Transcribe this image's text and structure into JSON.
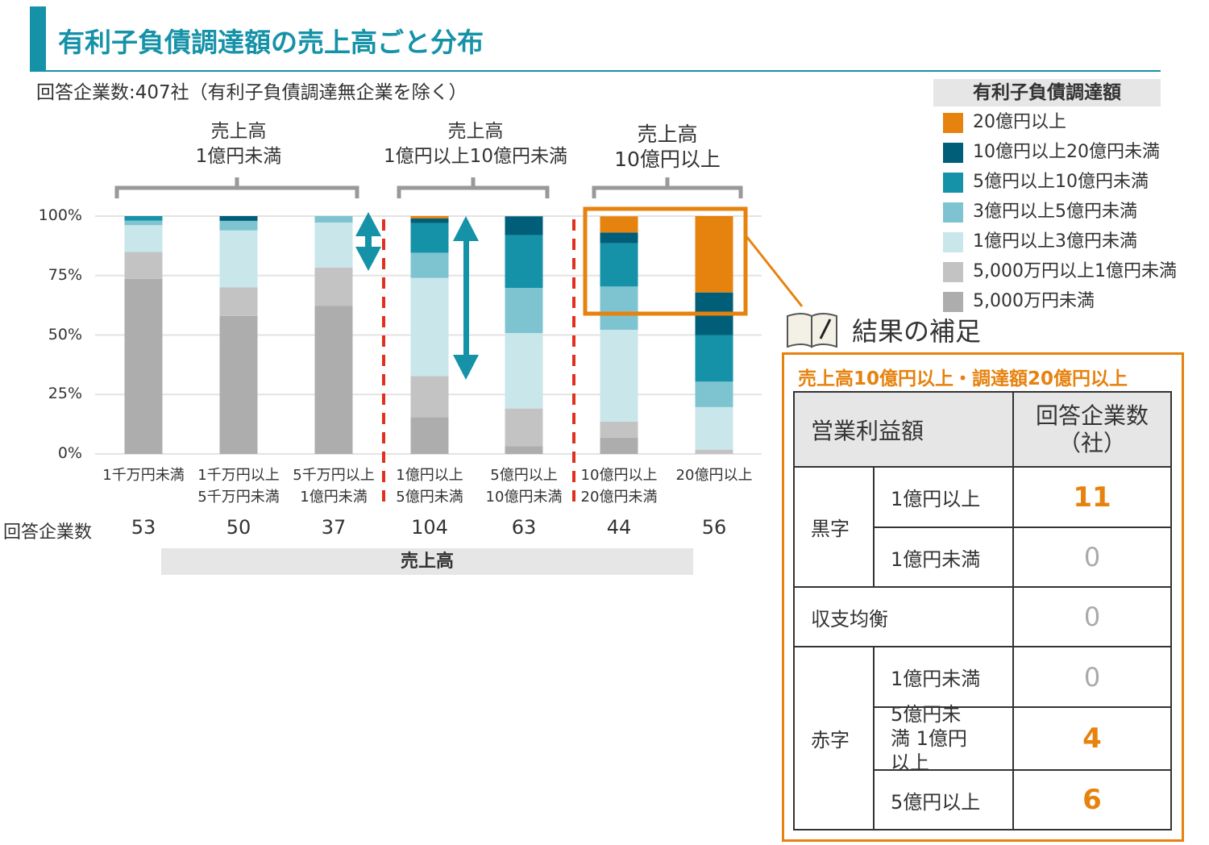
{
  "header": {
    "title": "有利子負債調達額の売上高ごと分布",
    "subtitle": "回答企業数:407社（有利子負債調達無企業を除く）"
  },
  "groups": [
    {
      "line1": "売上高",
      "line2": "1億円未満"
    },
    {
      "line1": "売上高",
      "line2": "1億円以上10億円未満"
    },
    {
      "line1": "売上高",
      "line2": "10億円以上"
    }
  ],
  "chart_data": {
    "type": "bar",
    "stacked": true,
    "percent": true,
    "categories": [
      [
        "1千万円未満",
        ""
      ],
      [
        "1千万円以上",
        "5千万円未満"
      ],
      [
        "5千万円以上",
        "1億円未満"
      ],
      [
        "1億円以上",
        "5億円未満"
      ],
      [
        "5億円以上",
        "10億円未満"
      ],
      [
        "10億円以上",
        "20億円未満"
      ],
      [
        "20億円以上",
        ""
      ]
    ],
    "yticks": [
      "0%",
      "25%",
      "50%",
      "75%",
      "100%"
    ],
    "ylim": [
      0,
      100
    ],
    "grid": true,
    "xlabel": "売上高",
    "count_label": "回答企業数",
    "counts": [
      53,
      50,
      37,
      104,
      63,
      44,
      56
    ],
    "legend_title": "有利子負債調達額",
    "legend_position": "right",
    "series": [
      {
        "name": "5,000万円未満",
        "color": "#ADADAD",
        "values": [
          73.6,
          58.0,
          62.2,
          15.4,
          3.2,
          6.8,
          0
        ]
      },
      {
        "name": "5,000万円以上1億円未満",
        "color": "#C3C3C3",
        "values": [
          11.3,
          12.0,
          16.2,
          17.3,
          15.9,
          6.8,
          1.8
        ]
      },
      {
        "name": "1億円以上3億円未満",
        "color": "#C9E6EA",
        "values": [
          11.3,
          24.0,
          18.9,
          41.3,
          31.7,
          38.6,
          17.9
        ]
      },
      {
        "name": "3億円以上5億円未満",
        "color": "#7DC4D0",
        "values": [
          1.9,
          4.0,
          2.7,
          10.6,
          19.0,
          18.2,
          10.7
        ]
      },
      {
        "name": "5億円以上10億円未満",
        "color": "#1592A8",
        "values": [
          1.9,
          0,
          0,
          12.5,
          22.2,
          18.2,
          19.6
        ]
      },
      {
        "name": "10億円以上20億円未満",
        "color": "#005E78",
        "values": [
          0,
          2.0,
          0,
          1.9,
          7.9,
          4.5,
          17.9
        ]
      },
      {
        "name": "20億円以上",
        "color": "#E6820E",
        "values": [
          0,
          0,
          0,
          1.0,
          0,
          6.8,
          32.1
        ]
      }
    ]
  },
  "note": {
    "title": "結果の補足",
    "subtitle": "売上高10億円以上・調達額20億円以上",
    "header": {
      "col1": "営業利益額",
      "col2": "回答企業数（社）"
    },
    "groups": {
      "profit": "黒字",
      "balance": "収支均衡",
      "loss": "赤字"
    },
    "rows": [
      {
        "label": "1億円以上",
        "value": "11"
      },
      {
        "label": "1億円未満",
        "value": "0"
      },
      {
        "label": "",
        "value": "0"
      },
      {
        "label": "1億円未満",
        "value": "0"
      },
      {
        "label": "5億円未満 1億円以上",
        "value": "4"
      },
      {
        "label": "5億円以上",
        "value": "6"
      }
    ]
  },
  "colors": {
    "accent": "#1592A8",
    "highlight": "#E6820E",
    "divider": "#E0301E"
  }
}
